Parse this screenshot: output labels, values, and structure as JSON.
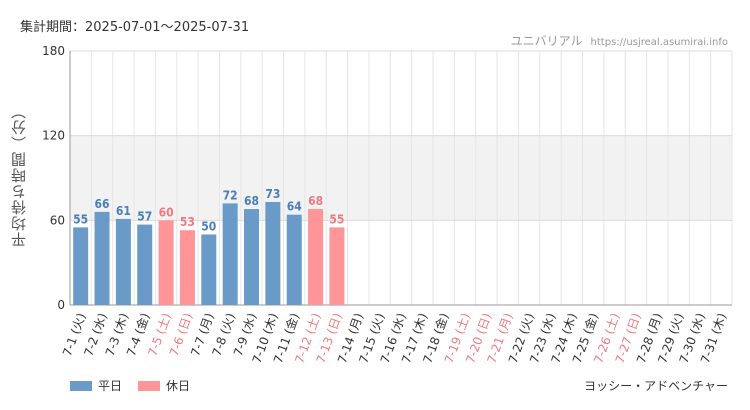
{
  "header": {
    "period_label": "集計期間：2025-07-01〜2025-07-31",
    "source_name": "ユニバリアル",
    "source_url": "https://usjreal.asumirai.info"
  },
  "footer": {
    "attraction": "ヨッシー・アドベンチャー"
  },
  "colors": {
    "weekday": "#6a9ac8",
    "holiday": "#ff9499",
    "weekday_text": "#4a7fb8",
    "holiday_text": "#f07a80",
    "band": "#f2f2f2"
  },
  "chart_data": {
    "type": "bar",
    "ylabel": "平均待ち時間（分）",
    "ylim": [
      0,
      180
    ],
    "yticks": [
      0,
      60,
      120,
      180
    ],
    "band": [
      60,
      120
    ],
    "legend": [
      {
        "name": "平日",
        "key": "weekday"
      },
      {
        "name": "休日",
        "key": "holiday"
      }
    ],
    "categories": [
      "7-1 (火)",
      "7-2 (水)",
      "7-3 (木)",
      "7-4 (金)",
      "7-5 (土)",
      "7-6 (日)",
      "7-7 (月)",
      "7-8 (火)",
      "7-9 (水)",
      "7-10 (木)",
      "7-11 (金)",
      "7-12 (土)",
      "7-13 (日)",
      "7-14 (月)",
      "7-15 (火)",
      "7-16 (水)",
      "7-17 (木)",
      "7-18 (金)",
      "7-19 (土)",
      "7-20 (日)",
      "7-21 (月)",
      "7-22 (火)",
      "7-23 (水)",
      "7-24 (木)",
      "7-25 (金)",
      "7-26 (土)",
      "7-27 (日)",
      "7-28 (月)",
      "7-29 (火)",
      "7-30 (水)",
      "7-31 (木)"
    ],
    "day_type": [
      "weekday",
      "weekday",
      "weekday",
      "weekday",
      "holiday",
      "holiday",
      "weekday",
      "weekday",
      "weekday",
      "weekday",
      "weekday",
      "holiday",
      "holiday",
      "weekday",
      "weekday",
      "weekday",
      "weekday",
      "weekday",
      "holiday",
      "holiday",
      "holiday",
      "weekday",
      "weekday",
      "weekday",
      "weekday",
      "holiday",
      "holiday",
      "weekday",
      "weekday",
      "weekday",
      "weekday"
    ],
    "values": [
      55,
      66,
      61,
      57,
      60,
      53,
      50,
      72,
      68,
      73,
      64,
      68,
      55,
      null,
      null,
      null,
      null,
      null,
      null,
      null,
      null,
      null,
      null,
      null,
      null,
      null,
      null,
      null,
      null,
      null,
      null
    ]
  }
}
